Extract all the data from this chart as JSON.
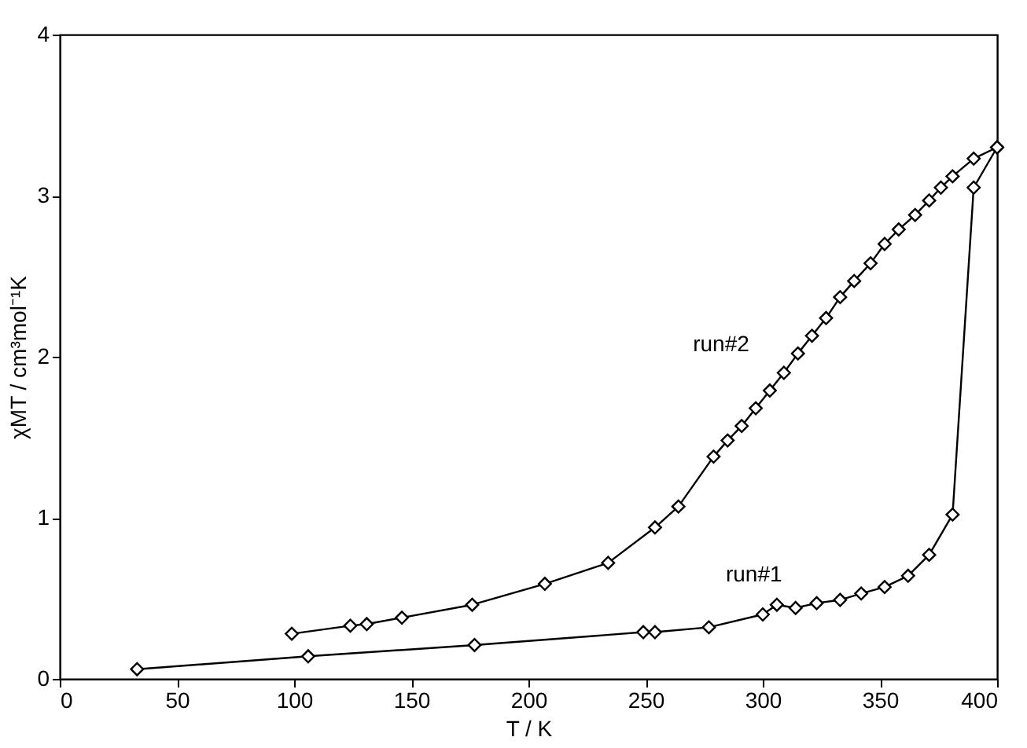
{
  "chart_data": {
    "type": "line",
    "xlabel": "T / K",
    "ylabel": "χMT / cm³mol⁻¹K",
    "xlim": [
      0,
      400
    ],
    "xticks": [
      0,
      50,
      100,
      150,
      200,
      250,
      300,
      350,
      400
    ],
    "ylim": [
      0,
      4
    ],
    "yticks": [
      0,
      1,
      2,
      3,
      4
    ],
    "grid": false,
    "legend": false,
    "marker": "diamond",
    "line_style": "solid",
    "series": [
      {
        "name": "run#1",
        "color": "#000000",
        "x": [
          33,
          106,
          177,
          249,
          254,
          277,
          300,
          306,
          314,
          323,
          333,
          342,
          352,
          362,
          371,
          381,
          390,
          400
        ],
        "values": [
          0.06,
          0.14,
          0.21,
          0.29,
          0.29,
          0.32,
          0.4,
          0.46,
          0.44,
          0.47,
          0.49,
          0.53,
          0.57,
          0.64,
          0.77,
          1.02,
          3.05,
          3.3
        ]
      },
      {
        "name": "run#2",
        "color": "#000000",
        "x": [
          99,
          124,
          131,
          146,
          176,
          207,
          234,
          254,
          264,
          279,
          285,
          291,
          297,
          303,
          309,
          315,
          321,
          327,
          333,
          339,
          346,
          352,
          358,
          365,
          371,
          376,
          381,
          390,
          400
        ],
        "values": [
          0.28,
          0.33,
          0.34,
          0.38,
          0.46,
          0.59,
          0.72,
          0.94,
          1.07,
          1.38,
          1.48,
          1.57,
          1.68,
          1.79,
          1.9,
          2.02,
          2.13,
          2.24,
          2.37,
          2.47,
          2.58,
          2.7,
          2.79,
          2.88,
          2.97,
          3.05,
          3.12,
          3.23,
          3.3
        ]
      }
    ]
  }
}
